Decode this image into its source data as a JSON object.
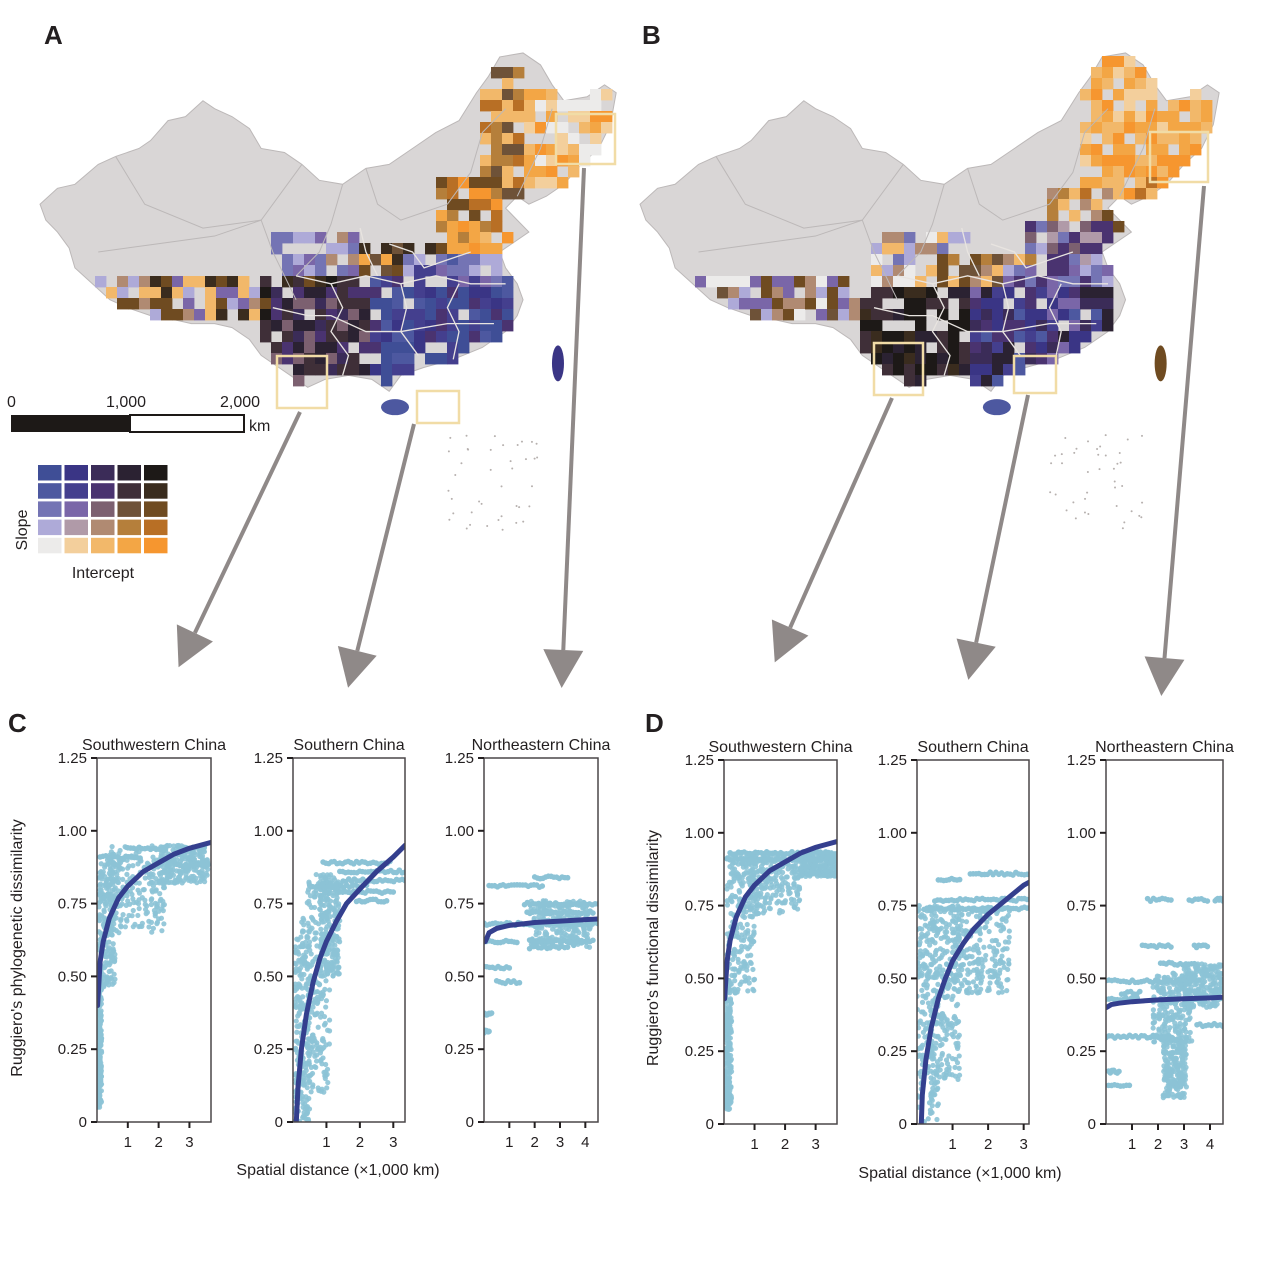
{
  "panels": {
    "a": {
      "label": "A"
    },
    "b": {
      "label": "B"
    },
    "c": {
      "label": "C"
    },
    "d": {
      "label": "D"
    }
  },
  "scale_bar": {
    "ticks": [
      "0",
      "1,000",
      "2,000"
    ],
    "unit": "km"
  },
  "legend": {
    "y_label": "Slope",
    "x_label": "Intercept",
    "rows_top_to_bottom": [
      [
        "#3f4e96",
        "#3a3585",
        "#3b2c58",
        "#2b2232",
        "#1d1917"
      ],
      [
        "#4d58a0",
        "#443f8e",
        "#4a3370",
        "#3f2f38",
        "#3a2c1e"
      ],
      [
        "#7474b4",
        "#7a66a8",
        "#7c6070",
        "#6e5238",
        "#6f4b21"
      ],
      [
        "#aeaad8",
        "#b09aa8",
        "#b08a72",
        "#b57f3b",
        "#b86f25"
      ],
      [
        "#ecebea",
        "#f3cf9c",
        "#f2b86a",
        "#f3a645",
        "#f6962f"
      ]
    ]
  },
  "map_colors": {
    "land": "#d9d6d6",
    "province_border_outside": "#bcb8b8",
    "province_border_inside": "#e8e4e0",
    "inset_box": "#f1dca6",
    "arrow": "#8f8988"
  },
  "regions": [
    "Southwestern China",
    "Southern China",
    "Northeastern China"
  ],
  "shared_axes": {
    "x_label": "Spatial distance (×1,000 km)",
    "y_ticks": [
      "0",
      "0.25",
      "0.50",
      "0.75",
      "1.00",
      "1.25"
    ]
  },
  "chart_data": [
    {
      "type": "scatter",
      "panel": "C",
      "ylabel": "Ruggiero's phylogenetic dissimilarity",
      "xlabel": "Spatial distance (×1,000 km)",
      "subplots": [
        {
          "title": "Southwestern China",
          "xlim": [
            0,
            3.7
          ],
          "ylim": [
            0,
            1.25
          ],
          "x_ticks": [
            1,
            2,
            3
          ],
          "y_ticks": [
            0,
            0.25,
            0.5,
            0.75,
            1.0,
            1.25
          ],
          "fit_curve": {
            "x": [
              0.02,
              0.1,
              0.2,
              0.4,
              0.7,
              1.0,
              1.5,
              2.0,
              2.5,
              3.0,
              3.7
            ],
            "y": [
              0.4,
              0.55,
              0.62,
              0.7,
              0.77,
              0.81,
              0.86,
              0.89,
              0.92,
              0.94,
              0.96
            ]
          },
          "point_clusters": [
            {
              "x": [
                0.0,
                0.15
              ],
              "y": [
                0.05,
                0.5
              ]
            },
            {
              "x": [
                0.05,
                0.6
              ],
              "y": [
                0.45,
                0.9
              ]
            },
            {
              "x": [
                0.4,
                2.2
              ],
              "y": [
                0.65,
                0.95
              ]
            },
            {
              "x": [
                2.0,
                3.6
              ],
              "y": [
                0.82,
                0.95
              ]
            }
          ],
          "point_bands": [
            {
              "y": 0.91,
              "x": [
                0.1,
                1.4
              ]
            },
            {
              "y": 0.94,
              "x": [
                1.0,
                2.2
              ]
            },
            {
              "y": 0.88,
              "x": [
                2.6,
                3.6
              ]
            }
          ]
        },
        {
          "title": "Southern China",
          "xlim": [
            0,
            3.35
          ],
          "ylim": [
            0,
            1.25
          ],
          "x_ticks": [
            1,
            2,
            3
          ],
          "y_ticks": [
            0,
            0.25,
            0.5,
            0.75,
            1.0,
            1.25
          ],
          "fit_curve": {
            "x": [
              0.1,
              0.15,
              0.25,
              0.4,
              0.6,
              0.8,
              1.0,
              1.3,
              1.6,
              2.0,
              2.5,
              3.0,
              3.35
            ],
            "y": [
              0.0,
              0.12,
              0.25,
              0.37,
              0.48,
              0.56,
              0.62,
              0.69,
              0.75,
              0.8,
              0.86,
              0.91,
              0.95
            ]
          },
          "point_clusters": [
            {
              "x": [
                0.05,
                0.5
              ],
              "y": [
                0.0,
                0.7
              ]
            },
            {
              "x": [
                0.4,
                1.1
              ],
              "y": [
                0.1,
                0.85
              ]
            },
            {
              "x": [
                0.8,
                1.4
              ],
              "y": [
                0.5,
                0.85
              ]
            }
          ],
          "point_bands": [
            {
              "y": 0.89,
              "x": [
                0.9,
                2.9
              ]
            },
            {
              "y": 0.86,
              "x": [
                1.4,
                3.35
              ]
            },
            {
              "y": 0.81,
              "x": [
                0.5,
                2.2
              ]
            },
            {
              "y": 0.83,
              "x": [
                1.5,
                3.35
              ]
            },
            {
              "y": 0.79,
              "x": [
                1.4,
                3.0
              ]
            },
            {
              "y": 0.76,
              "x": [
                1.9,
                2.8
              ]
            }
          ]
        },
        {
          "title": "Northeastern China",
          "xlim": [
            0,
            4.5
          ],
          "ylim": [
            0,
            1.25
          ],
          "x_ticks": [
            1,
            2,
            3,
            4
          ],
          "y_ticks": [
            0,
            0.25,
            0.5,
            0.75,
            1.0,
            1.25
          ],
          "fit_curve": {
            "x": [
              0.05,
              0.2,
              0.5,
              1.0,
              1.5,
              2.0,
              3.0,
              4.0,
              4.5
            ],
            "y": [
              0.62,
              0.65,
              0.665,
              0.675,
              0.68,
              0.685,
              0.69,
              0.695,
              0.697
            ]
          },
          "point_clusters": [
            {
              "x": [
                1.8,
                4.2
              ],
              "y": [
                0.6,
                0.76
              ]
            }
          ],
          "point_bands": [
            {
              "y": 0.68,
              "x": [
                0.0,
                4.5
              ]
            },
            {
              "y": 0.81,
              "x": [
                0.2,
                2.3
              ]
            },
            {
              "y": 0.84,
              "x": [
                2.0,
                3.3
              ]
            },
            {
              "y": 0.75,
              "x": [
                1.6,
                4.5
              ]
            },
            {
              "y": 0.72,
              "x": [
                1.7,
                4.3
              ]
            },
            {
              "y": 0.62,
              "x": [
                0.0,
                1.3
              ]
            },
            {
              "y": 0.62,
              "x": [
                1.8,
                4.3
              ]
            },
            {
              "y": 0.6,
              "x": [
                1.8,
                3.3
              ]
            },
            {
              "y": 0.53,
              "x": [
                0.0,
                1.0
              ]
            },
            {
              "y": 0.48,
              "x": [
                0.5,
                1.4
              ]
            },
            {
              "y": 0.37,
              "x": [
                0.0,
                0.3
              ]
            },
            {
              "y": 0.31,
              "x": [
                0.0,
                0.2
              ]
            }
          ]
        }
      ]
    },
    {
      "type": "scatter",
      "panel": "D",
      "ylabel": "Ruggiero's functional dissimilarity",
      "xlabel": "Spatial distance (×1,000 km)",
      "subplots": [
        {
          "title": "Southwestern China",
          "xlim": [
            0,
            3.7
          ],
          "ylim": [
            0,
            1.25
          ],
          "x_ticks": [
            1,
            2,
            3
          ],
          "y_ticks": [
            0,
            0.25,
            0.5,
            0.75,
            1.0,
            1.25
          ],
          "fit_curve": {
            "x": [
              0.02,
              0.1,
              0.2,
              0.4,
              0.7,
              1.0,
              1.5,
              2.0,
              2.5,
              3.0,
              3.7
            ],
            "y": [
              0.43,
              0.56,
              0.63,
              0.71,
              0.78,
              0.82,
              0.87,
              0.9,
              0.93,
              0.95,
              0.97
            ]
          },
          "point_clusters": [
            {
              "x": [
                0.0,
                0.25
              ],
              "y": [
                0.05,
                0.5
              ]
            },
            {
              "x": [
                0.1,
                1.0
              ],
              "y": [
                0.45,
                0.93
              ]
            },
            {
              "x": [
                0.8,
                2.5
              ],
              "y": [
                0.72,
                0.93
              ]
            },
            {
              "x": [
                2.5,
                3.7
              ],
              "y": [
                0.85,
                0.93
              ]
            }
          ],
          "point_bands": [
            {
              "y": 0.93,
              "x": [
                0.2,
                3.7
              ]
            },
            {
              "y": 0.91,
              "x": [
                0.1,
                3.7
              ]
            }
          ]
        },
        {
          "title": "Southern China",
          "xlim": [
            0,
            3.15
          ],
          "ylim": [
            0,
            1.25
          ],
          "x_ticks": [
            1,
            2,
            3
          ],
          "y_ticks": [
            0,
            0.25,
            0.5,
            0.75,
            1.0,
            1.25
          ],
          "fit_curve": {
            "x": [
              0.12,
              0.15,
              0.25,
              0.4,
              0.6,
              0.8,
              1.0,
              1.3,
              1.6,
              2.0,
              2.5,
              3.0,
              3.15
            ],
            "y": [
              0.0,
              0.1,
              0.22,
              0.33,
              0.43,
              0.5,
              0.56,
              0.62,
              0.67,
              0.72,
              0.77,
              0.82,
              0.83
            ]
          },
          "point_clusters": [
            {
              "x": [
                0.0,
                0.6
              ],
              "y": [
                0.0,
                0.75
              ]
            },
            {
              "x": [
                0.4,
                1.2
              ],
              "y": [
                0.15,
                0.75
              ]
            },
            {
              "x": [
                1.0,
                2.6
              ],
              "y": [
                0.45,
                0.75
              ]
            }
          ],
          "point_bands": [
            {
              "y": 0.84,
              "x": [
                0.6,
                1.2
              ]
            },
            {
              "y": 0.86,
              "x": [
                1.5,
                3.1
              ]
            },
            {
              "y": 0.77,
              "x": [
                0.5,
                3.1
              ]
            },
            {
              "y": 0.74,
              "x": [
                0.2,
                3.1
              ]
            }
          ]
        },
        {
          "title": "Northeastern China",
          "xlim": [
            0,
            4.5
          ],
          "ylim": [
            0,
            1.25
          ],
          "x_ticks": [
            1,
            2,
            3,
            4
          ],
          "y_ticks": [
            0,
            0.25,
            0.5,
            0.75,
            1.0,
            1.25
          ],
          "fit_curve": {
            "x": [
              0.02,
              0.2,
              0.5,
              1.0,
              1.5,
              2.0,
              3.0,
              4.0,
              4.5
            ],
            "y": [
              0.4,
              0.41,
              0.415,
              0.42,
              0.423,
              0.426,
              0.43,
              0.433,
              0.435
            ]
          },
          "point_clusters": [
            {
              "x": [
                1.8,
                3.3
              ],
              "y": [
                0.28,
                0.52
              ]
            },
            {
              "x": [
                2.2,
                3.1
              ],
              "y": [
                0.09,
                0.3
              ]
            },
            {
              "x": [
                3.0,
                4.5
              ],
              "y": [
                0.4,
                0.55
              ]
            }
          ],
          "point_bands": [
            {
              "y": 0.77,
              "x": [
                1.6,
                2.5
              ]
            },
            {
              "y": 0.77,
              "x": [
                3.2,
                3.9
              ]
            },
            {
              "y": 0.77,
              "x": [
                4.2,
                4.5
              ]
            },
            {
              "y": 0.61,
              "x": [
                1.4,
                2.5
              ]
            },
            {
              "y": 0.61,
              "x": [
                3.4,
                3.9
              ]
            },
            {
              "y": 0.55,
              "x": [
                2.1,
                3.4
              ]
            },
            {
              "y": 0.49,
              "x": [
                0.0,
                2.7
              ]
            },
            {
              "y": 0.45,
              "x": [
                0.6,
                1.3
              ]
            },
            {
              "y": 0.43,
              "x": [
                0.0,
                1.2
              ]
            },
            {
              "y": 0.3,
              "x": [
                0.0,
                2.5
              ]
            },
            {
              "y": 0.34,
              "x": [
                3.5,
                4.5
              ]
            },
            {
              "y": 0.18,
              "x": [
                0.1,
                0.5
              ]
            },
            {
              "y": 0.13,
              "x": [
                0.1,
                0.9
              ]
            }
          ]
        }
      ]
    }
  ]
}
